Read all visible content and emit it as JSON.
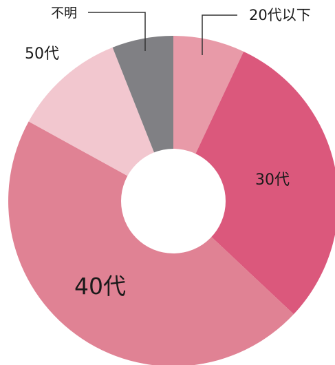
{
  "chart_data": {
    "type": "pie",
    "variant": "donut",
    "title": "",
    "slices": [
      {
        "label": "20代以下",
        "value": 7,
        "color": "#e89aa8"
      },
      {
        "label": "30代",
        "value": 30,
        "color": "#db587c"
      },
      {
        "label": "40代",
        "value": 46,
        "color": "#e08294"
      },
      {
        "label": "50代",
        "value": 11,
        "color": "#f2c7cf"
      },
      {
        "label": "不明",
        "value": 6,
        "color": "#808084"
      }
    ],
    "legend": "none",
    "start": "12 o'clock",
    "direction": "clockwise"
  }
}
